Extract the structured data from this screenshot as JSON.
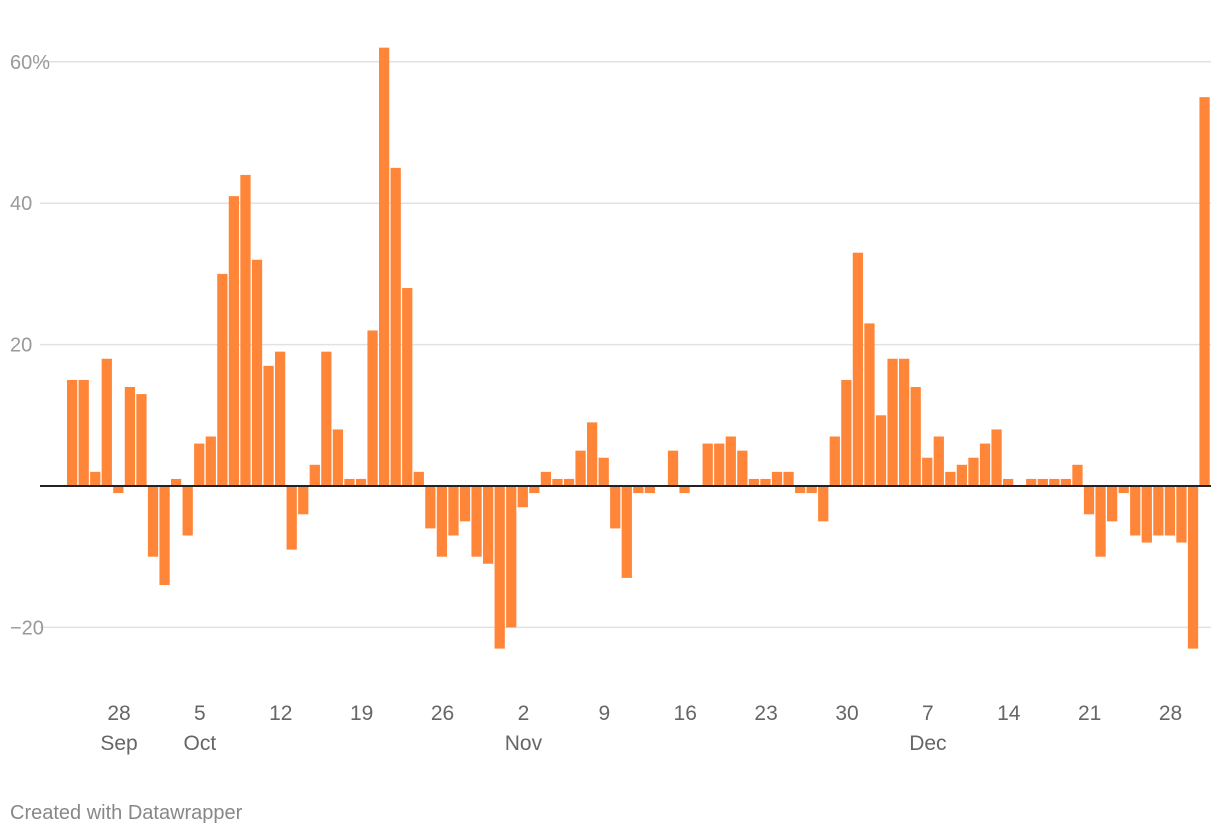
{
  "chart_data": {
    "type": "bar",
    "x": [
      "2020-09-24",
      "2020-09-25",
      "2020-09-26",
      "2020-09-27",
      "2020-09-28",
      "2020-09-29",
      "2020-09-30",
      "2020-10-01",
      "2020-10-02",
      "2020-10-03",
      "2020-10-04",
      "2020-10-05",
      "2020-10-06",
      "2020-10-07",
      "2020-10-08",
      "2020-10-09",
      "2020-10-10",
      "2020-10-11",
      "2020-10-12",
      "2020-10-13",
      "2020-10-14",
      "2020-10-15",
      "2020-10-16",
      "2020-10-17",
      "2020-10-18",
      "2020-10-19",
      "2020-10-20",
      "2020-10-21",
      "2020-10-22",
      "2020-10-23",
      "2020-10-24",
      "2020-10-25",
      "2020-10-26",
      "2020-10-27",
      "2020-10-28",
      "2020-10-29",
      "2020-10-30",
      "2020-10-31",
      "2020-11-01",
      "2020-11-02",
      "2020-11-03",
      "2020-11-04",
      "2020-11-05",
      "2020-11-06",
      "2020-11-07",
      "2020-11-08",
      "2020-11-09",
      "2020-11-10",
      "2020-11-11",
      "2020-11-12",
      "2020-11-13",
      "2020-11-14",
      "2020-11-15",
      "2020-11-16",
      "2020-11-17",
      "2020-11-18",
      "2020-11-19",
      "2020-11-20",
      "2020-11-21",
      "2020-11-22",
      "2020-11-23",
      "2020-11-24",
      "2020-11-25",
      "2020-11-26",
      "2020-11-27",
      "2020-11-28",
      "2020-11-29",
      "2020-11-30",
      "2020-12-01",
      "2020-12-02",
      "2020-12-03",
      "2020-12-04",
      "2020-12-05",
      "2020-12-06",
      "2020-12-07",
      "2020-12-08",
      "2020-12-09",
      "2020-12-10",
      "2020-12-11",
      "2020-12-12",
      "2020-12-13",
      "2020-12-14",
      "2020-12-15",
      "2020-12-16",
      "2020-12-17",
      "2020-12-18",
      "2020-12-19",
      "2020-12-20",
      "2020-12-21",
      "2020-12-22",
      "2020-12-23",
      "2020-12-24",
      "2020-12-25",
      "2020-12-26",
      "2020-12-27",
      "2020-12-28",
      "2020-12-29",
      "2020-12-30",
      "2020-12-31"
    ],
    "values": [
      15,
      15,
      2,
      18,
      -1,
      14,
      13,
      -10,
      -14,
      1,
      -7,
      6,
      7,
      30,
      41,
      44,
      32,
      17,
      19,
      -9,
      -4,
      3,
      19,
      8,
      1,
      1,
      22,
      62,
      45,
      28,
      2,
      -6,
      -10,
      -7,
      -5,
      -10,
      -11,
      -23,
      -20,
      -3,
      -1,
      2,
      1,
      1,
      5,
      9,
      4,
      -6,
      -13,
      -1,
      -1,
      0,
      5,
      -1,
      0,
      6,
      6,
      7,
      5,
      1,
      1,
      2,
      2,
      -1,
      -1,
      -5,
      7,
      15,
      33,
      23,
      10,
      18,
      18,
      14,
      4,
      7,
      2,
      3,
      4,
      6,
      8,
      1,
      0,
      1,
      1,
      1,
      1,
      3,
      -4,
      -10,
      -5,
      -1,
      -7,
      -8,
      -7,
      -7,
      -8,
      -23,
      55
    ],
    "ylim": [
      -29,
      63
    ],
    "yticks": [
      -20,
      20,
      40,
      60
    ],
    "ytick_labels": [
      "−20",
      "20",
      "40",
      "60%"
    ],
    "xticks": [
      {
        "date": "2020-09-28",
        "label": "28",
        "month": "Sep"
      },
      {
        "date": "2020-10-05",
        "label": "5",
        "month": "Oct"
      },
      {
        "date": "2020-10-12",
        "label": "12",
        "month": ""
      },
      {
        "date": "2020-10-19",
        "label": "19",
        "month": ""
      },
      {
        "date": "2020-10-26",
        "label": "26",
        "month": ""
      },
      {
        "date": "2020-11-02",
        "label": "2",
        "month": "Nov"
      },
      {
        "date": "2020-11-09",
        "label": "9",
        "month": ""
      },
      {
        "date": "2020-11-16",
        "label": "16",
        "month": ""
      },
      {
        "date": "2020-11-23",
        "label": "23",
        "month": ""
      },
      {
        "date": "2020-11-30",
        "label": "30",
        "month": ""
      },
      {
        "date": "2020-12-07",
        "label": "7",
        "month": "Dec"
      },
      {
        "date": "2020-12-14",
        "label": "14",
        "month": ""
      },
      {
        "date": "2020-12-21",
        "label": "21",
        "month": ""
      },
      {
        "date": "2020-12-28",
        "label": "28",
        "month": ""
      }
    ],
    "grid": true,
    "bar_color": "#ff8538",
    "baseline_color": "#222222",
    "grid_color": "#e2e2e2"
  },
  "footer": {
    "credit": "Created with Datawrapper"
  }
}
